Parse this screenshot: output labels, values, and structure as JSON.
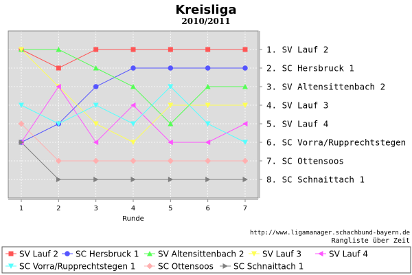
{
  "chart_data": {
    "type": "line",
    "title": "Kreisliga",
    "subtitle": "2010/2011",
    "xlabel": "Runde",
    "x": [
      1,
      2,
      3,
      4,
      5,
      6,
      7
    ],
    "ylim": [
      9,
      0
    ],
    "grid": true,
    "legend_position": "bottom",
    "rank_labels": [
      "1.  SV Lauf 2",
      "2.  SC Hersbruck 1",
      "3.  SV Altensittenbach 2",
      "4.  SV Lauf 3",
      "5.  SV Lauf 4",
      "6.  SC Vorra/Rupprechtstegen 1",
      "7.  SC Ottensoos",
      "8.  SC Schnaittach 1"
    ],
    "series": [
      {
        "name": "SV Lauf 2",
        "color": "#ff5555",
        "marker": "square",
        "values": [
          1,
          2,
          1,
          1,
          1,
          1,
          1
        ]
      },
      {
        "name": "SC Hersbruck 1",
        "color": "#5555ff",
        "marker": "circle",
        "values": [
          6,
          5,
          3,
          2,
          2,
          2,
          2
        ]
      },
      {
        "name": "SV Altensittenbach 2",
        "color": "#55ff55",
        "marker": "triangle-up",
        "values": [
          1,
          1,
          2,
          3,
          5,
          3,
          3
        ]
      },
      {
        "name": "SV Lauf 3",
        "color": "#ffff55",
        "marker": "triangle-down",
        "values": [
          1,
          3,
          5,
          6,
          4,
          4,
          4
        ]
      },
      {
        "name": "SV Lauf 4",
        "color": "#ff55ff",
        "marker": "triangle-left",
        "values": [
          6,
          3,
          6,
          4,
          6,
          6,
          5
        ]
      },
      {
        "name": "SC Vorra/Rupprechtstegen 1",
        "color": "#55ffff",
        "marker": "triangle-down",
        "values": [
          4,
          5,
          4,
          5,
          3,
          5,
          6
        ]
      },
      {
        "name": "SC Ottensoos",
        "color": "#ffafaf",
        "marker": "diamond",
        "values": [
          5,
          7,
          7,
          7,
          7,
          7,
          7
        ]
      },
      {
        "name": "SC Schnaittach 1",
        "color": "#808080",
        "marker": "triangle-right",
        "values": [
          6,
          8,
          8,
          8,
          8,
          8,
          8
        ]
      }
    ]
  },
  "footer": {
    "url": "http://www.ligamanager.schachbund-bayern.de",
    "caption": "Rangliste über Zeit"
  }
}
